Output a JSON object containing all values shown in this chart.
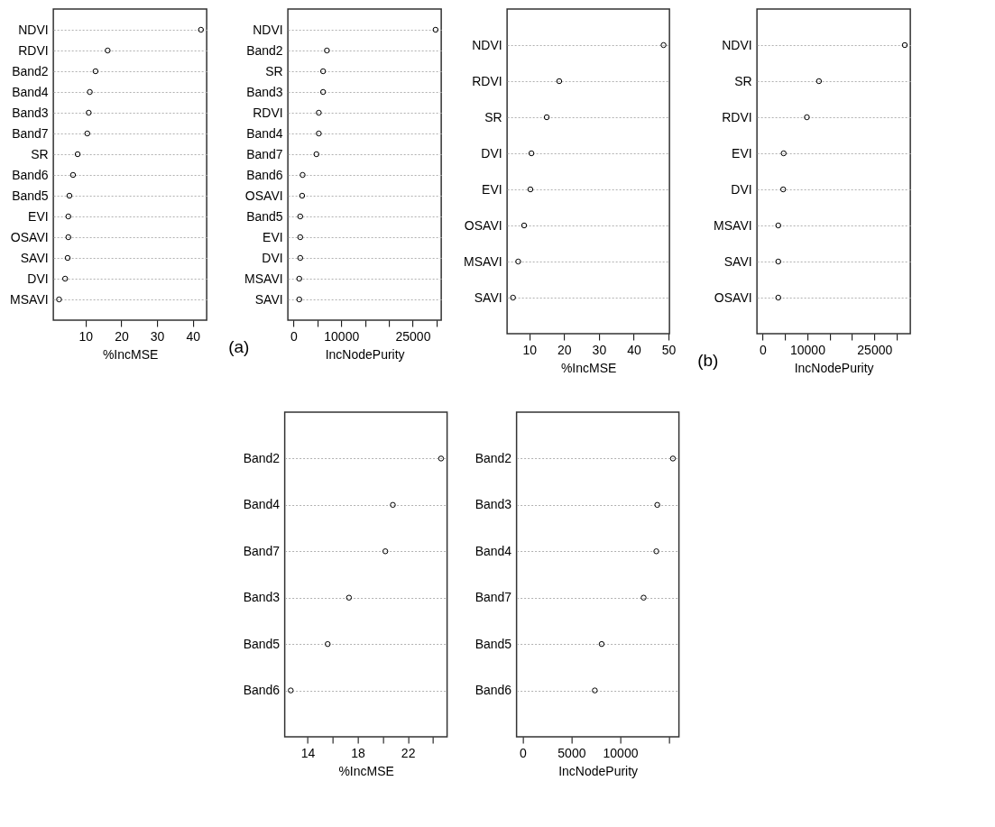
{
  "chart_data": [
    {
      "type": "scatter",
      "orientation": "horizontal",
      "xlabel": "%IncMSE",
      "categories": [
        "NDVI",
        "RDVI",
        "Band2",
        "Band4",
        "Band3",
        "Band7",
        "SR",
        "Band6",
        "Band5",
        "EVI",
        "OSAVI",
        "SAVI",
        "DVI",
        "MSAVI"
      ],
      "values": [
        42.3,
        16.2,
        12.8,
        11.2,
        10.9,
        10.5,
        7.8,
        6.5,
        5.5,
        5.2,
        5.2,
        5.0,
        4.3,
        2.6
      ],
      "color": "#000000",
      "xlim": [
        1.0,
        43.9
      ],
      "xticks": [
        10,
        20,
        30,
        40
      ],
      "marker": "circle",
      "grid": "y"
    },
    {
      "type": "scatter",
      "orientation": "horizontal",
      "xlabel": "IncNodePurity",
      "annotations": [
        "(a)"
      ],
      "categories": [
        "NDVI",
        "Band2",
        "SR",
        "Band3",
        "RDVI",
        "Band4",
        "Band7",
        "Band6",
        "OSAVI",
        "Band5",
        "EVI",
        "DVI",
        "MSAVI",
        "SAVI"
      ],
      "values": [
        29800,
        7000,
        6200,
        6200,
        5300,
        5300,
        4800,
        1900,
        1800,
        1400,
        1400,
        1400,
        1200,
        1200
      ],
      "color": "#000000",
      "xlim": [
        -1190,
        30990
      ],
      "xticks": [
        0,
        {
          "value": 5000,
          "label": null
        },
        10000,
        {
          "value": 15000,
          "label": null
        },
        {
          "value": 20000,
          "label": null
        },
        25000,
        {
          "value": 30000,
          "label": null
        }
      ],
      "marker": "circle",
      "grid": "y"
    },
    {
      "type": "scatter",
      "orientation": "horizontal",
      "xlabel": "%IncMSE",
      "categories": [
        "NDVI",
        "RDVI",
        "SR",
        "DVI",
        "EVI",
        "OSAVI",
        "MSAVI",
        "SAVI"
      ],
      "values": [
        48.6,
        18.6,
        15.0,
        10.6,
        10.3,
        8.5,
        6.8,
        5.3
      ],
      "color": "#000000",
      "xlim": [
        3.6,
        50.3
      ],
      "xticks": [
        10,
        20,
        30,
        40,
        50
      ],
      "marker": "circle",
      "grid": "y"
    },
    {
      "type": "scatter",
      "orientation": "horizontal",
      "xlabel": "IncNodePurity",
      "annotations": [
        "(b)"
      ],
      "categories": [
        "NDVI",
        "SR",
        "RDVI",
        "EVI",
        "DVI",
        "MSAVI",
        "SAVI",
        "OSAVI"
      ],
      "values": [
        31800,
        12600,
        9900,
        4700,
        4600,
        3500,
        3500,
        3500
      ],
      "color": "#000000",
      "xlim": [
        -1270,
        33040
      ],
      "xticks": [
        0,
        {
          "value": 5000,
          "label": null
        },
        10000,
        {
          "value": 15000,
          "label": null
        },
        {
          "value": 20000,
          "label": null
        },
        25000,
        {
          "value": 30000,
          "label": null
        }
      ],
      "marker": "circle",
      "grid": "y"
    },
    {
      "type": "scatter",
      "orientation": "horizontal",
      "xlabel": "%IncMSE",
      "categories": [
        "Band2",
        "Band4",
        "Band7",
        "Band3",
        "Band5",
        "Band6"
      ],
      "values": [
        24.65,
        20.8,
        20.2,
        17.3,
        15.6,
        12.65
      ],
      "color": "#000000",
      "xlim": [
        12.17,
        25.13
      ],
      "xticks": [
        14,
        {
          "value": 16,
          "label": null
        },
        18,
        {
          "value": 20,
          "label": null
        },
        22,
        {
          "value": 24,
          "label": null
        }
      ],
      "marker": "circle",
      "grid": "y"
    },
    {
      "type": "scatter",
      "orientation": "horizontal",
      "xlabel": "IncNodePurity",
      "categories": [
        "Band2",
        "Band3",
        "Band4",
        "Band7",
        "Band5",
        "Band6"
      ],
      "values": [
        15400,
        13800,
        13700,
        12400,
        8100,
        7400
      ],
      "color": "#000000",
      "xlim": [
        -616,
        16016
      ],
      "xticks": [
        0,
        5000,
        10000,
        {
          "value": 15000,
          "label": null
        }
      ],
      "marker": "circle",
      "grid": "y"
    }
  ]
}
